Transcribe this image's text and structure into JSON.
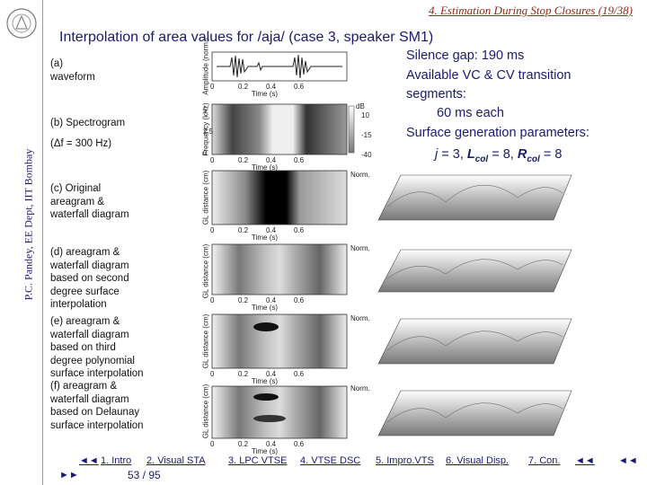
{
  "header": {
    "section": "4. Estimation During Stop Closures (19/38)",
    "sidebar": "P.C. Pandey, EE Dept, IIT Bombay",
    "title": "Interpolation of area values for /aja/ (case 3, speaker SM1)"
  },
  "panel_labels": {
    "a": [
      "(a)",
      "waveform"
    ],
    "b": [
      "(b) Spectrogram",
      "(Δf = 300 Hz)"
    ],
    "c": [
      "(c) Original",
      "areagram &",
      "waterfall diagram"
    ],
    "d": [
      "(d) areagram &",
      "waterfall diagram",
      "based on second",
      "degree surface",
      "interpolation"
    ],
    "e": [
      "(e) areagram &",
      "waterfall diagram",
      "based on third",
      "degree polynomial",
      "surface interpolation"
    ],
    "f": [
      "(f) areagram &",
      "waterfall diagram",
      "based on Delaunay",
      "surface interpolation"
    ]
  },
  "figure": {
    "time_ticks": [
      "0",
      "0.2",
      "0.4",
      "0.6"
    ],
    "time_label": "Time (s)",
    "amplitude_label": "Amplitude (norm.)",
    "frequency_label": "Frequency (kHz)",
    "frequency_ticks": [
      "5",
      "2.5",
      "0"
    ],
    "db_label": "dB",
    "db_ticks": [
      "10",
      "-15",
      "-40"
    ],
    "distance_label": "GL distance (cm)",
    "norm_label": "Norm."
  },
  "notes": {
    "line1": "Silence gap: 190 ms",
    "line2": "Available VC & CV transition",
    "line3": "segments:",
    "line4": "60 ms each",
    "line5": "Surface generation parameters:",
    "params": [
      "j",
      " = 3, ",
      "L",
      "col",
      " = 8, ",
      "R",
      "col",
      " = 8"
    ]
  },
  "nav": {
    "links": [
      "1. Intro",
      "2. Visual STA",
      "3. LPC VTSE",
      "4. VTSE DSC",
      "5. Impro.VTS",
      "6. Visual Disp.",
      "7. Con."
    ],
    "page": "53 / 95",
    "prev": "◄◄",
    "next": "►►",
    "back": "◄◄"
  }
}
